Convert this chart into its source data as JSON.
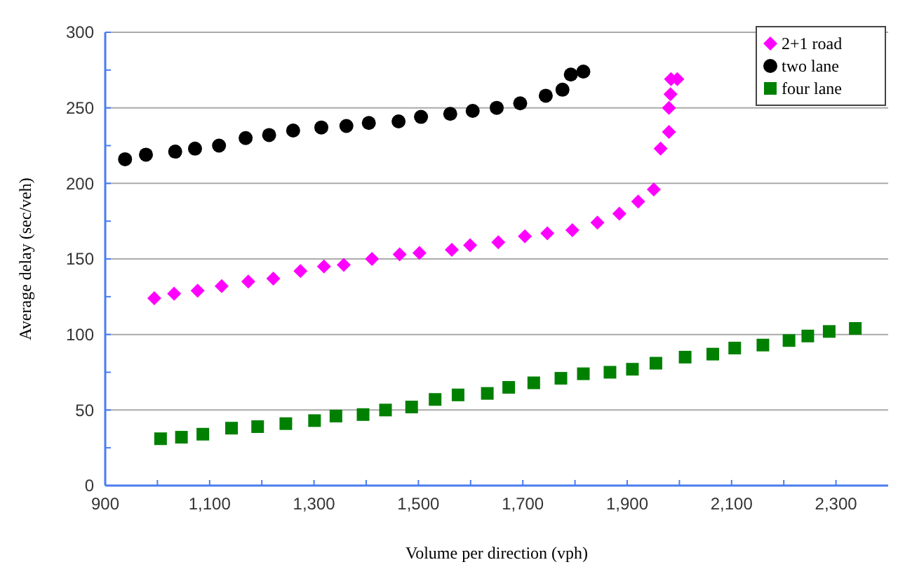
{
  "chart_data": {
    "type": "scatter",
    "xlabel": "Volume per direction (vph)",
    "ylabel": "Average delay (sec/veh)",
    "xlim": [
      900,
      2400
    ],
    "xticks": [
      {
        "value": 900,
        "label": "900"
      },
      {
        "value": 1100,
        "label": "1,100"
      },
      {
        "value": 1300,
        "label": "1,300"
      },
      {
        "value": 1500,
        "label": "1,500"
      },
      {
        "value": 1700,
        "label": "1,700"
      },
      {
        "value": 1900,
        "label": "1,900"
      },
      {
        "value": 2100,
        "label": "2,100"
      },
      {
        "value": 2300,
        "label": "2,300"
      }
    ],
    "ylim": [
      0,
      300
    ],
    "yticks": [
      0,
      50,
      100,
      150,
      200,
      250,
      300
    ],
    "grid": "y",
    "legend": "top right",
    "series": [
      {
        "name": "2+1 road",
        "color": "#ff00ff",
        "marker": "diamond",
        "x": [
          994,
          1032,
          1077,
          1123,
          1174,
          1222,
          1274,
          1319,
          1357,
          1411,
          1464,
          1502,
          1564,
          1599,
          1653,
          1704,
          1747,
          1795,
          1843,
          1885,
          1921,
          1951,
          1964,
          1980,
          1980,
          1983,
          1984,
          1996
        ],
        "values": [
          124,
          127,
          129,
          132,
          135,
          137,
          142,
          145,
          146,
          150,
          153,
          154,
          156,
          159,
          161,
          165,
          167,
          169,
          174,
          180,
          188,
          196,
          223,
          234,
          250,
          259,
          269,
          269
        ]
      },
      {
        "name": "two lane",
        "color": "#000000",
        "marker": "circle",
        "x": [
          938,
          978,
          1034,
          1072,
          1118,
          1169,
          1214,
          1260,
          1314,
          1362,
          1405,
          1462,
          1505,
          1561,
          1604,
          1650,
          1695,
          1744,
          1776,
          1792,
          1816
        ],
        "values": [
          216,
          219,
          221,
          223,
          225,
          230,
          232,
          235,
          237,
          238,
          240,
          241,
          244,
          246,
          248,
          250,
          253,
          258,
          262,
          272,
          274
        ]
      },
      {
        "name": "four lane",
        "color": "#008000",
        "marker": "square",
        "x": [
          1006,
          1046,
          1087,
          1142,
          1192,
          1246,
          1301,
          1342,
          1394,
          1437,
          1487,
          1532,
          1576,
          1632,
          1673,
          1721,
          1773,
          1816,
          1867,
          1910,
          1955,
          2011,
          2064,
          2106,
          2160,
          2210,
          2246,
          2287,
          2337
        ],
        "values": [
          31,
          32,
          34,
          38,
          39,
          41,
          43,
          46,
          47,
          50,
          52,
          57,
          60,
          61,
          65,
          68,
          71,
          74,
          75,
          77,
          81,
          85,
          87,
          91,
          93,
          96,
          99,
          102,
          104
        ]
      }
    ]
  }
}
